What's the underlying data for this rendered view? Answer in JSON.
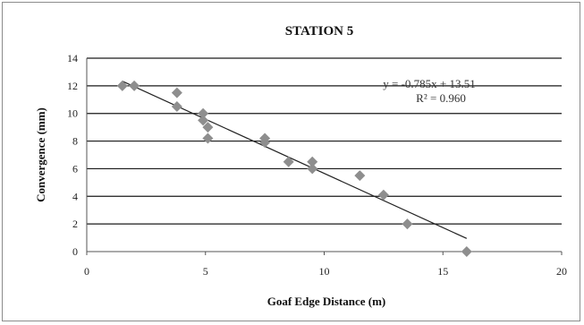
{
  "chart_data": {
    "type": "scatter",
    "title": "STATION 5",
    "xlabel": "Goaf Edge Distance (m)",
    "ylabel": "Convergence (mm)",
    "xlim": [
      0,
      20
    ],
    "ylim": [
      0,
      14
    ],
    "xticks": [
      "0",
      "5",
      "10",
      "15",
      "20"
    ],
    "yticks": [
      "0",
      "2",
      "4",
      "6",
      "8",
      "10",
      "12",
      "14"
    ],
    "grid": "horizontal",
    "legend": "none",
    "series": [
      {
        "x": [
          1.5,
          2.0,
          3.8,
          3.8,
          4.9,
          4.9,
          5.1,
          5.1,
          7.5,
          7.5,
          8.5,
          9.5,
          9.5,
          11.5,
          12.5,
          13.5,
          16.0
        ],
        "y": [
          12.0,
          12.0,
          11.5,
          10.5,
          10.0,
          9.5,
          9.0,
          8.2,
          8.2,
          7.9,
          6.5,
          6.5,
          6.0,
          5.5,
          4.1,
          2.0,
          0.0
        ]
      }
    ],
    "trendline": {
      "slope": -0.785,
      "intercept": 13.51,
      "x_range": [
        1.5,
        16.0
      ]
    },
    "annotations": {
      "equation": "y = -0.785x + 13.51",
      "r_squared": "R² = 0.960"
    },
    "colors": {
      "marker": "#8e8e8e",
      "line": "#222222",
      "grid": "#1a1a1a"
    }
  }
}
